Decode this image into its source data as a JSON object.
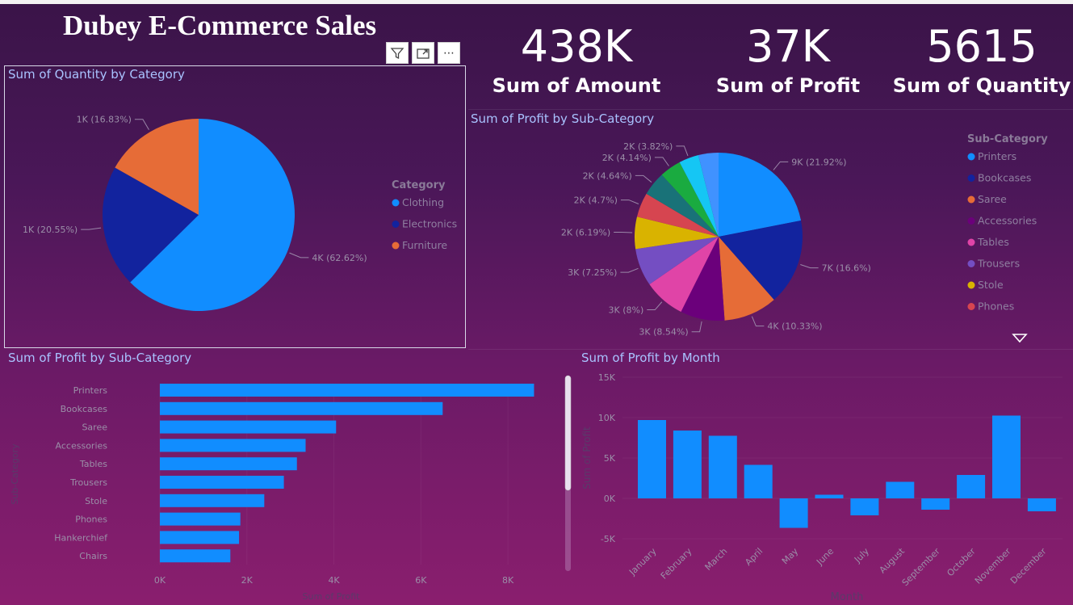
{
  "title": "Dubey E-Commerce Sales",
  "kpis": [
    {
      "value": "438K",
      "label": "Sum of Amount"
    },
    {
      "value": "37K",
      "label": "Sum of Profit"
    },
    {
      "value": "5615",
      "label": "Sum of Quantity"
    }
  ],
  "toolbar": {
    "filter_icon": "filter-icon",
    "focus_icon": "focus-mode-icon",
    "more_icon": "more-options-icon",
    "more_label": "⋯"
  },
  "colors": {
    "blue": "#118dff",
    "navy": "#12239e",
    "orange": "#e66c37",
    "purple": "#6b007b",
    "pink": "#e044a7",
    "violet": "#744ec2",
    "yellow": "#d9b300",
    "red": "#d64550",
    "teal": "#197278",
    "green": "#1aab40",
    "cyan": "#15c6f4",
    "lightblue": "#4092ff"
  },
  "chart_data": [
    {
      "type": "pie",
      "title": "Sum of Quantity by Category",
      "legend_title": "Category",
      "legend": "right",
      "slices": [
        {
          "name": "Clothing",
          "value": 3516,
          "label": "4K (62.62%)",
          "color": "#118dff"
        },
        {
          "name": "Electronics",
          "value": 1154,
          "label": "1K (20.55%)",
          "color": "#12239e"
        },
        {
          "name": "Furniture",
          "value": 945,
          "label": "1K (16.83%)",
          "color": "#e66c37"
        }
      ]
    },
    {
      "type": "pie",
      "title": "Sum of Profit by Sub-Category",
      "legend_title": "Sub-Category",
      "legend": "right",
      "legend_entries": [
        "Printers",
        "Bookcases",
        "Saree",
        "Accessories",
        "Tables",
        "Trousers",
        "Stole",
        "Phones"
      ],
      "slices": [
        {
          "name": "Printers",
          "value": 21.92,
          "label": "9K (21.92%)",
          "color": "#118dff"
        },
        {
          "name": "Bookcases",
          "value": 16.6,
          "label": "7K (16.6%)",
          "color": "#12239e"
        },
        {
          "name": "Saree",
          "value": 10.33,
          "label": "4K (10.33%)",
          "color": "#e66c37"
        },
        {
          "name": "Accessories",
          "value": 8.54,
          "label": "3K (8.54%)",
          "color": "#6b007b"
        },
        {
          "name": "Tables",
          "value": 8.0,
          "label": "3K (8%)",
          "color": "#e044a7"
        },
        {
          "name": "Trousers",
          "value": 7.25,
          "label": "3K (7.25%)",
          "color": "#744ec2"
        },
        {
          "name": "Stole",
          "value": 6.19,
          "label": "2K (6.19%)",
          "color": "#d9b300"
        },
        {
          "name": "Phones",
          "value": 4.7,
          "label": "2K (4.7%)",
          "color": "#d64550"
        },
        {
          "name": "",
          "value": 4.64,
          "label": "2K (4.64%)",
          "color": "#197278"
        },
        {
          "name": "",
          "value": 4.14,
          "label": "2K (4.14%)",
          "color": "#1aab40"
        },
        {
          "name": "",
          "value": 3.82,
          "label": "2K (3.82%)",
          "color": "#15c6f4"
        },
        {
          "name": "",
          "value": 3.87,
          "label": "",
          "color": "#4092ff"
        }
      ]
    },
    {
      "type": "bar",
      "orientation": "horizontal",
      "title": "Sum of Profit by Sub-Category",
      "categories": [
        "Printers",
        "Bookcases",
        "Saree",
        "Accessories",
        "Tables",
        "Trousers",
        "Stole",
        "Phones",
        "Hankerchief",
        "Chairs"
      ],
      "values": [
        8600,
        6500,
        4050,
        3350,
        3150,
        2850,
        2400,
        1850,
        1820,
        1620
      ],
      "xlim": [
        0,
        9000
      ],
      "ticks": [
        "0K",
        "2K",
        "4K",
        "6K",
        "8K"
      ],
      "tick_values": [
        0,
        2000,
        4000,
        6000,
        8000
      ],
      "xlabel": "Sum of Profit",
      "ylabel": "Sub-Category",
      "color": "#118dff"
    },
    {
      "type": "bar",
      "title": "Sum of Profit by Month",
      "categories": [
        "January",
        "February",
        "March",
        "April",
        "May",
        "June",
        "July",
        "August",
        "September",
        "October",
        "November",
        "December"
      ],
      "values": [
        9700,
        8400,
        7750,
        4150,
        -3650,
        450,
        -2100,
        2050,
        -1400,
        2900,
        10250,
        -1600
      ],
      "ylim": [
        -5000,
        15000
      ],
      "ticks": [
        "15K",
        "10K",
        "5K",
        "0K",
        "-5K"
      ],
      "tick_values": [
        15000,
        10000,
        5000,
        0,
        -5000
      ],
      "xlabel": "Month",
      "ylabel": "Sum of Profit",
      "color": "#118dff"
    }
  ]
}
